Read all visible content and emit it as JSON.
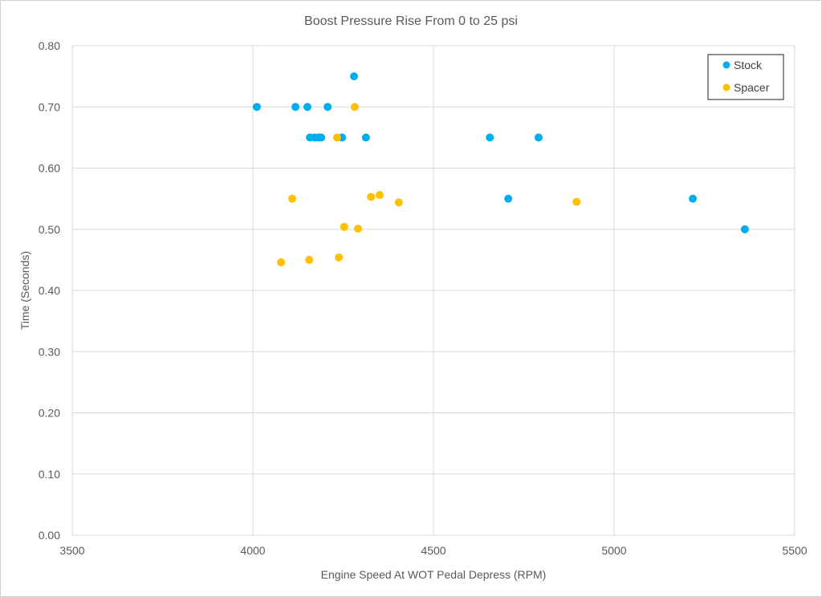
{
  "chart_data": {
    "type": "scatter",
    "title": "Boost Pressure Rise From 0 to 25 psi",
    "xlabel": "Engine Speed At WOT Pedal Depress (RPM)",
    "ylabel": "Time (Seconds)",
    "xlim": [
      3500,
      5500
    ],
    "ylim": [
      0,
      0.8
    ],
    "xticks": [
      3500,
      4000,
      4500,
      5000,
      5500
    ],
    "yticks": [
      "0.00",
      "0.10",
      "0.20",
      "0.30",
      "0.40",
      "0.50",
      "0.60",
      "0.70",
      "0.80"
    ],
    "grid": true,
    "legend_position": "top-right",
    "series": [
      {
        "name": "Stock",
        "color": "#00AEEF",
        "points": [
          [
            4011,
            0.7
          ],
          [
            4118,
            0.7
          ],
          [
            4151,
            0.7
          ],
          [
            4207,
            0.7
          ],
          [
            4280,
            0.75
          ],
          [
            4158,
            0.65
          ],
          [
            4171,
            0.65
          ],
          [
            4182,
            0.65
          ],
          [
            4189,
            0.65
          ],
          [
            4247,
            0.65
          ],
          [
            4313,
            0.65
          ],
          [
            4656,
            0.65
          ],
          [
            4791,
            0.65
          ],
          [
            4707,
            0.55
          ],
          [
            5218,
            0.55
          ],
          [
            5362,
            0.5
          ]
        ]
      },
      {
        "name": "Spacer",
        "color": "#FFC000",
        "points": [
          [
            4282,
            0.7
          ],
          [
            4233,
            0.65
          ],
          [
            4109,
            0.55
          ],
          [
            4327,
            0.553
          ],
          [
            4351,
            0.556
          ],
          [
            4404,
            0.544
          ],
          [
            4896,
            0.545
          ],
          [
            4253,
            0.504
          ],
          [
            4291,
            0.501
          ],
          [
            4078,
            0.446
          ],
          [
            4156,
            0.45
          ],
          [
            4238,
            0.454
          ]
        ]
      }
    ]
  }
}
